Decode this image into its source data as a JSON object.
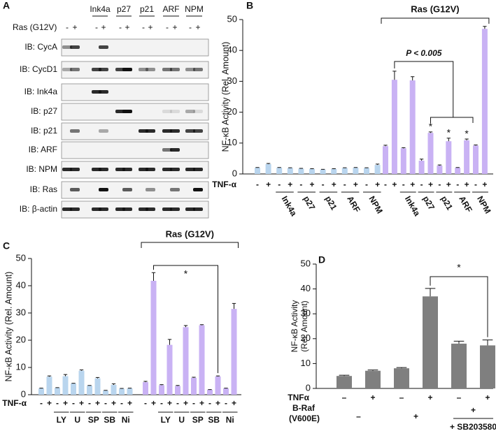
{
  "blot_panel": {
    "label": "A",
    "lane_groups": [
      "Ink4a",
      "p27",
      "p21",
      "ARF",
      "NPM"
    ],
    "condition_label": "Ras (G12V)",
    "lane_signs": [
      "-",
      "+"
    ],
    "rows": [
      "IB: CycA",
      "IB: CycD1",
      "IB: Ink4a",
      "IB: p27",
      "IB: p21",
      "IB: ARF",
      "IB: NPM",
      "IB: Ras",
      "IB: β-actin"
    ]
  },
  "chart_data": [
    {
      "type": "bar",
      "label": "B",
      "ylabel": "NF-κB Activity (Rel. Amount)",
      "ylim": [
        0,
        50
      ],
      "yticks": [
        0,
        10,
        20,
        30,
        40,
        50
      ],
      "row_label": "TNF-α",
      "categories": [
        "-",
        "+",
        "-",
        "+",
        "-",
        "+",
        "-",
        "+",
        "-",
        "+",
        "-",
        "+"
      ],
      "pair_labels": [
        null,
        "Ink4a",
        "p27",
        "p21",
        "ARF",
        "NPM"
      ],
      "series": [
        {
          "color": "#b9d5ee",
          "values": [
            2.0,
            3.2,
            2.0,
            1.9,
            1.7,
            1.6,
            1.4,
            1.6,
            1.9,
            2.0,
            1.9,
            2.9
          ],
          "errors": [
            0.1,
            0.2,
            0.1,
            0.1,
            0.1,
            0.1,
            0.1,
            0.1,
            0.1,
            0.1,
            0.1,
            0.3
          ]
        },
        {
          "color": "#c9b2f4",
          "values": [
            9.0,
            30.5,
            8.3,
            30.3,
            4.3,
            13.3,
            2.7,
            10.6,
            2.0,
            10.9,
            9.2,
            47.0
          ],
          "errors": [
            0.3,
            2.8,
            0.2,
            1.2,
            0.5,
            0.3,
            0.2,
            1.0,
            0.1,
            0.4,
            0.2,
            0.8
          ]
        }
      ],
      "annotations": {
        "group": "Ras (G12V)",
        "significance": "P < 0.005",
        "star": "*"
      }
    },
    {
      "type": "bar",
      "label": "C",
      "ylabel": "NF-κB Activity (Rel. Amount)",
      "ylim": [
        0,
        50
      ],
      "yticks": [
        0,
        10,
        20,
        30,
        40,
        50
      ],
      "row_label": "TNF-α",
      "categories": [
        "-",
        "+",
        "-",
        "+",
        "-",
        "+",
        "-",
        "+",
        "-",
        "+",
        "-",
        "+"
      ],
      "pair_labels": [
        null,
        "LY",
        "U",
        "SP",
        "SB",
        "Ni"
      ],
      "series": [
        {
          "color": "#b9d5ee",
          "values": [
            2.3,
            6.6,
            2.5,
            6.8,
            4.1,
            8.8,
            3.3,
            6.0,
            1.5,
            3.6,
            2.2,
            2.3
          ],
          "errors": [
            0.1,
            0.3,
            0.1,
            0.6,
            0.1,
            0.3,
            0.1,
            0.3,
            0.1,
            0.4,
            0.1,
            0.1
          ]
        },
        {
          "color": "#c9b2f4",
          "values": [
            4.6,
            41.8,
            3.5,
            18.3,
            3.2,
            24.8,
            6.2,
            25.5,
            1.8,
            6.7,
            2.3,
            31.5
          ],
          "errors": [
            0.3,
            3.0,
            0.2,
            2.0,
            0.2,
            0.6,
            0.2,
            0.2,
            0.1,
            0.2,
            0.1,
            2.0
          ]
        }
      ],
      "annotations": {
        "group": "Ras (G12V)",
        "star": "*"
      }
    },
    {
      "type": "bar",
      "label": "D",
      "ylabel": [
        "NF-κB Activity",
        "(Rel. Amount)"
      ],
      "ylim": [
        0,
        50
      ],
      "yticks": [
        0,
        10,
        20,
        30,
        40,
        50
      ],
      "row_label": "TNFα",
      "categories": [
        "–",
        "+",
        "–",
        "+",
        "–",
        "+"
      ],
      "braf_label": [
        "B-Raf",
        "(V600E)"
      ],
      "braf_signs": [
        "–",
        "+",
        "+"
      ],
      "inhibitor_label": "+ SB203580",
      "series": [
        {
          "color": "#7f7f7f",
          "values": [
            5.0,
            7.1,
            8.1,
            37.0,
            18.0,
            17.3
          ],
          "errors": [
            0.3,
            0.3,
            0.3,
            3.2,
            1.0,
            2.2
          ]
        }
      ],
      "annotations": {
        "star": "*"
      }
    }
  ]
}
